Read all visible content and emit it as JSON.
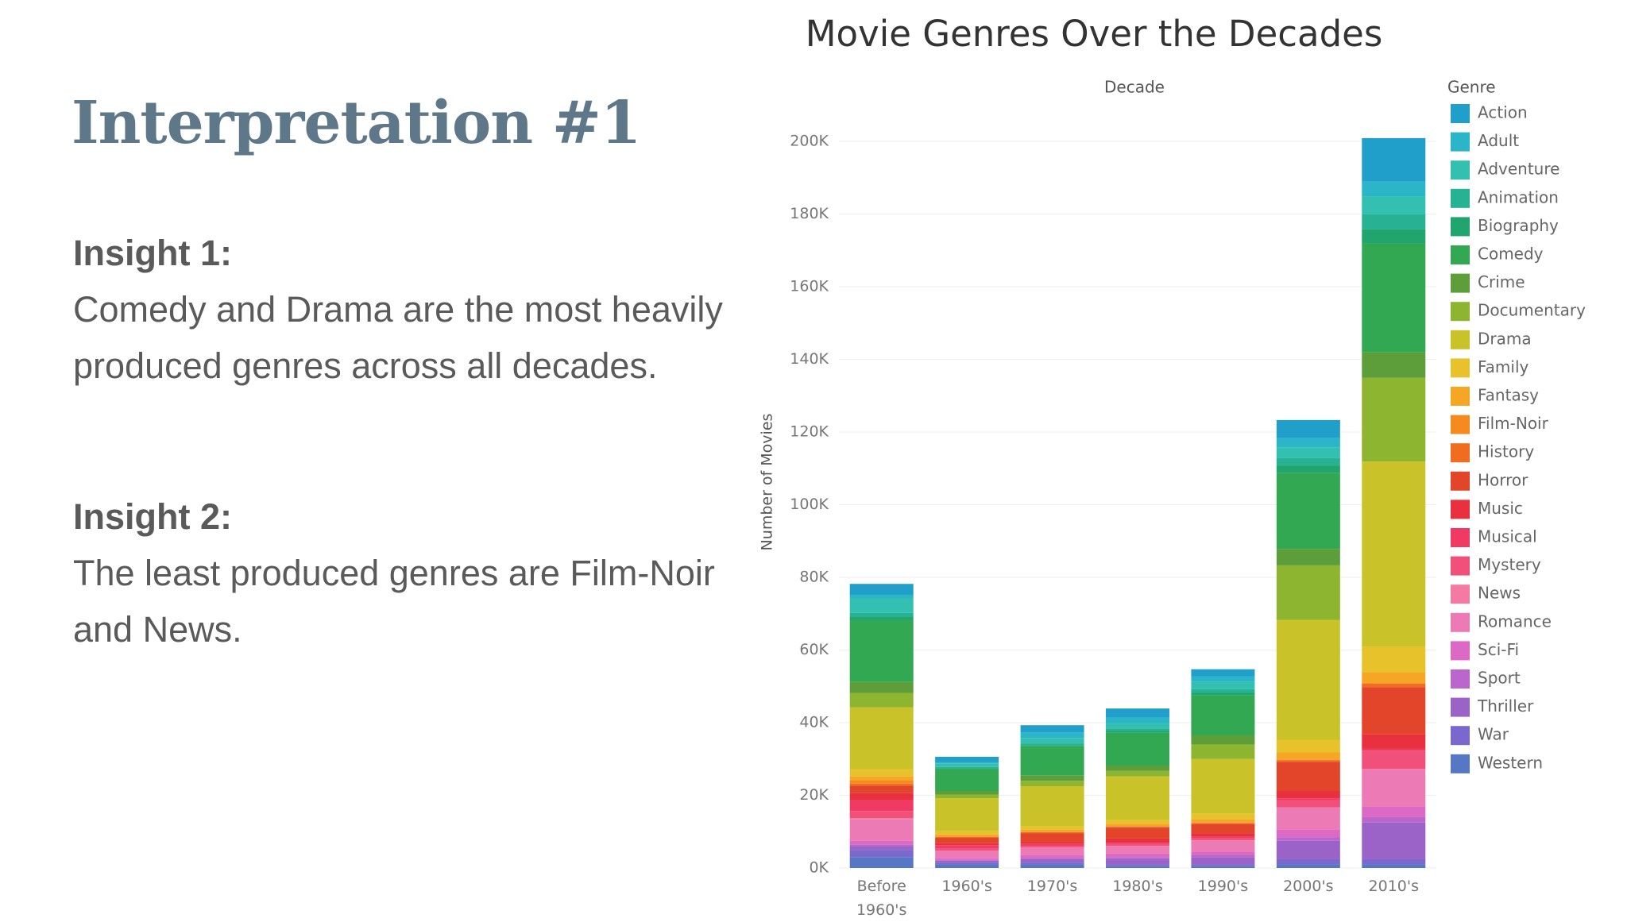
{
  "slide": {
    "title": "Interpretation #1",
    "insights": [
      {
        "heading": "Insight 1:",
        "text": "Comedy and Drama are the most heavily produced genres across all decades."
      },
      {
        "heading": "Insight 2:",
        "text": "The least produced genres are Film-Noir and News."
      }
    ]
  },
  "chart_data": {
    "type": "stacked_bar",
    "title": "Movie Genres Over the Decades",
    "x_label": "Decade",
    "y_label": "Number of Movies",
    "legend_title": "Genre",
    "legend": "right",
    "grid": true,
    "categories": [
      "Before 1960's",
      "1960's",
      "1970's",
      "1980's",
      "1990's",
      "2000's",
      "2010's"
    ],
    "ylim": [
      0,
      200000
    ],
    "yticks": [
      {
        "value": 0,
        "label": "0K"
      },
      {
        "value": 20000,
        "label": "20K"
      },
      {
        "value": 40000,
        "label": "40K"
      },
      {
        "value": 60000,
        "label": "60K"
      },
      {
        "value": 80000,
        "label": "80K"
      },
      {
        "value": 100000,
        "label": "100K"
      },
      {
        "value": 120000,
        "label": "120K"
      },
      {
        "value": 140000,
        "label": "140K"
      },
      {
        "value": 160000,
        "label": "160K"
      },
      {
        "value": 180000,
        "label": "180K"
      },
      {
        "value": 200000,
        "label": "200K"
      }
    ],
    "series": [
      {
        "name": "Action",
        "color": "#1f9fc9",
        "values": [
          3000,
          1500,
          2000,
          2500,
          2000,
          5000,
          12000
        ]
      },
      {
        "name": "Adult",
        "color": "#2bb5c9",
        "values": [
          1000,
          300,
          1500,
          1500,
          1500,
          2500,
          4000
        ]
      },
      {
        "name": "Adventure",
        "color": "#33c0b0",
        "values": [
          4000,
          1000,
          1500,
          1500,
          2000,
          3000,
          5000
        ]
      },
      {
        "name": "Animation",
        "color": "#27b293",
        "values": [
          1000,
          300,
          500,
          700,
          1000,
          2000,
          4000
        ]
      },
      {
        "name": "Biography",
        "color": "#20a56e",
        "values": [
          1000,
          300,
          300,
          500,
          700,
          2000,
          4000
        ]
      },
      {
        "name": "Comedy",
        "color": "#32a852",
        "values": [
          17000,
          6000,
          8000,
          9000,
          11000,
          21000,
          30000
        ]
      },
      {
        "name": "Crime",
        "color": "#5d9e3a",
        "values": [
          3000,
          1000,
          1500,
          1500,
          2500,
          4500,
          7000
        ]
      },
      {
        "name": "Documentary",
        "color": "#8eb52f",
        "values": [
          4000,
          1000,
          1500,
          1500,
          4000,
          15000,
          23000
        ]
      },
      {
        "name": "Drama",
        "color": "#c9c228",
        "values": [
          17000,
          9000,
          11000,
          12000,
          15000,
          33000,
          51000
        ]
      },
      {
        "name": "Family",
        "color": "#e8c22a",
        "values": [
          2000,
          1000,
          1000,
          1000,
          1500,
          3500,
          7000
        ]
      },
      {
        "name": "Fantasy",
        "color": "#f5a623",
        "values": [
          1000,
          500,
          500,
          700,
          1000,
          2000,
          3000
        ]
      },
      {
        "name": "Film-Noir",
        "color": "#f58a1f",
        "values": [
          1000,
          100,
          100,
          100,
          100,
          100,
          100
        ]
      },
      {
        "name": "History",
        "color": "#f06c1e",
        "values": [
          500,
          300,
          300,
          300,
          300,
          500,
          1000
        ]
      },
      {
        "name": "Horror",
        "color": "#e2452a",
        "values": [
          2000,
          1500,
          2500,
          3000,
          2500,
          8000,
          13000
        ]
      },
      {
        "name": "Music",
        "color": "#e8303f",
        "values": [
          2000,
          500,
          500,
          1000,
          1000,
          2000,
          4000
        ]
      },
      {
        "name": "Musical",
        "color": "#f03a64",
        "values": [
          3000,
          1000,
          500,
          500,
          300,
          500,
          500
        ]
      },
      {
        "name": "Mystery",
        "color": "#f0507a",
        "values": [
          2000,
          500,
          500,
          500,
          700,
          2000,
          5000
        ]
      },
      {
        "name": "News",
        "color": "#f27aa3",
        "values": [
          200,
          100,
          100,
          100,
          100,
          200,
          300
        ]
      },
      {
        "name": "Romance",
        "color": "#ec7ab5",
        "values": [
          6000,
          2000,
          2000,
          2000,
          3000,
          6000,
          10000
        ]
      },
      {
        "name": "Sci-Fi",
        "color": "#dc6ac4",
        "values": [
          1000,
          500,
          700,
          1000,
          1000,
          2000,
          3000
        ]
      },
      {
        "name": "Sport",
        "color": "#bb66cc",
        "values": [
          500,
          200,
          300,
          500,
          500,
          1000,
          1500
        ]
      },
      {
        "name": "Thriller",
        "color": "#9b63c8",
        "values": [
          1000,
          500,
          1000,
          1500,
          2000,
          5000,
          10000
        ]
      },
      {
        "name": "War",
        "color": "#7a68cc",
        "values": [
          2000,
          500,
          500,
          500,
          500,
          1500,
          1500
        ]
      },
      {
        "name": "Western",
        "color": "#5577c4",
        "values": [
          3000,
          1000,
          1000,
          500,
          500,
          1000,
          1000
        ]
      }
    ]
  }
}
